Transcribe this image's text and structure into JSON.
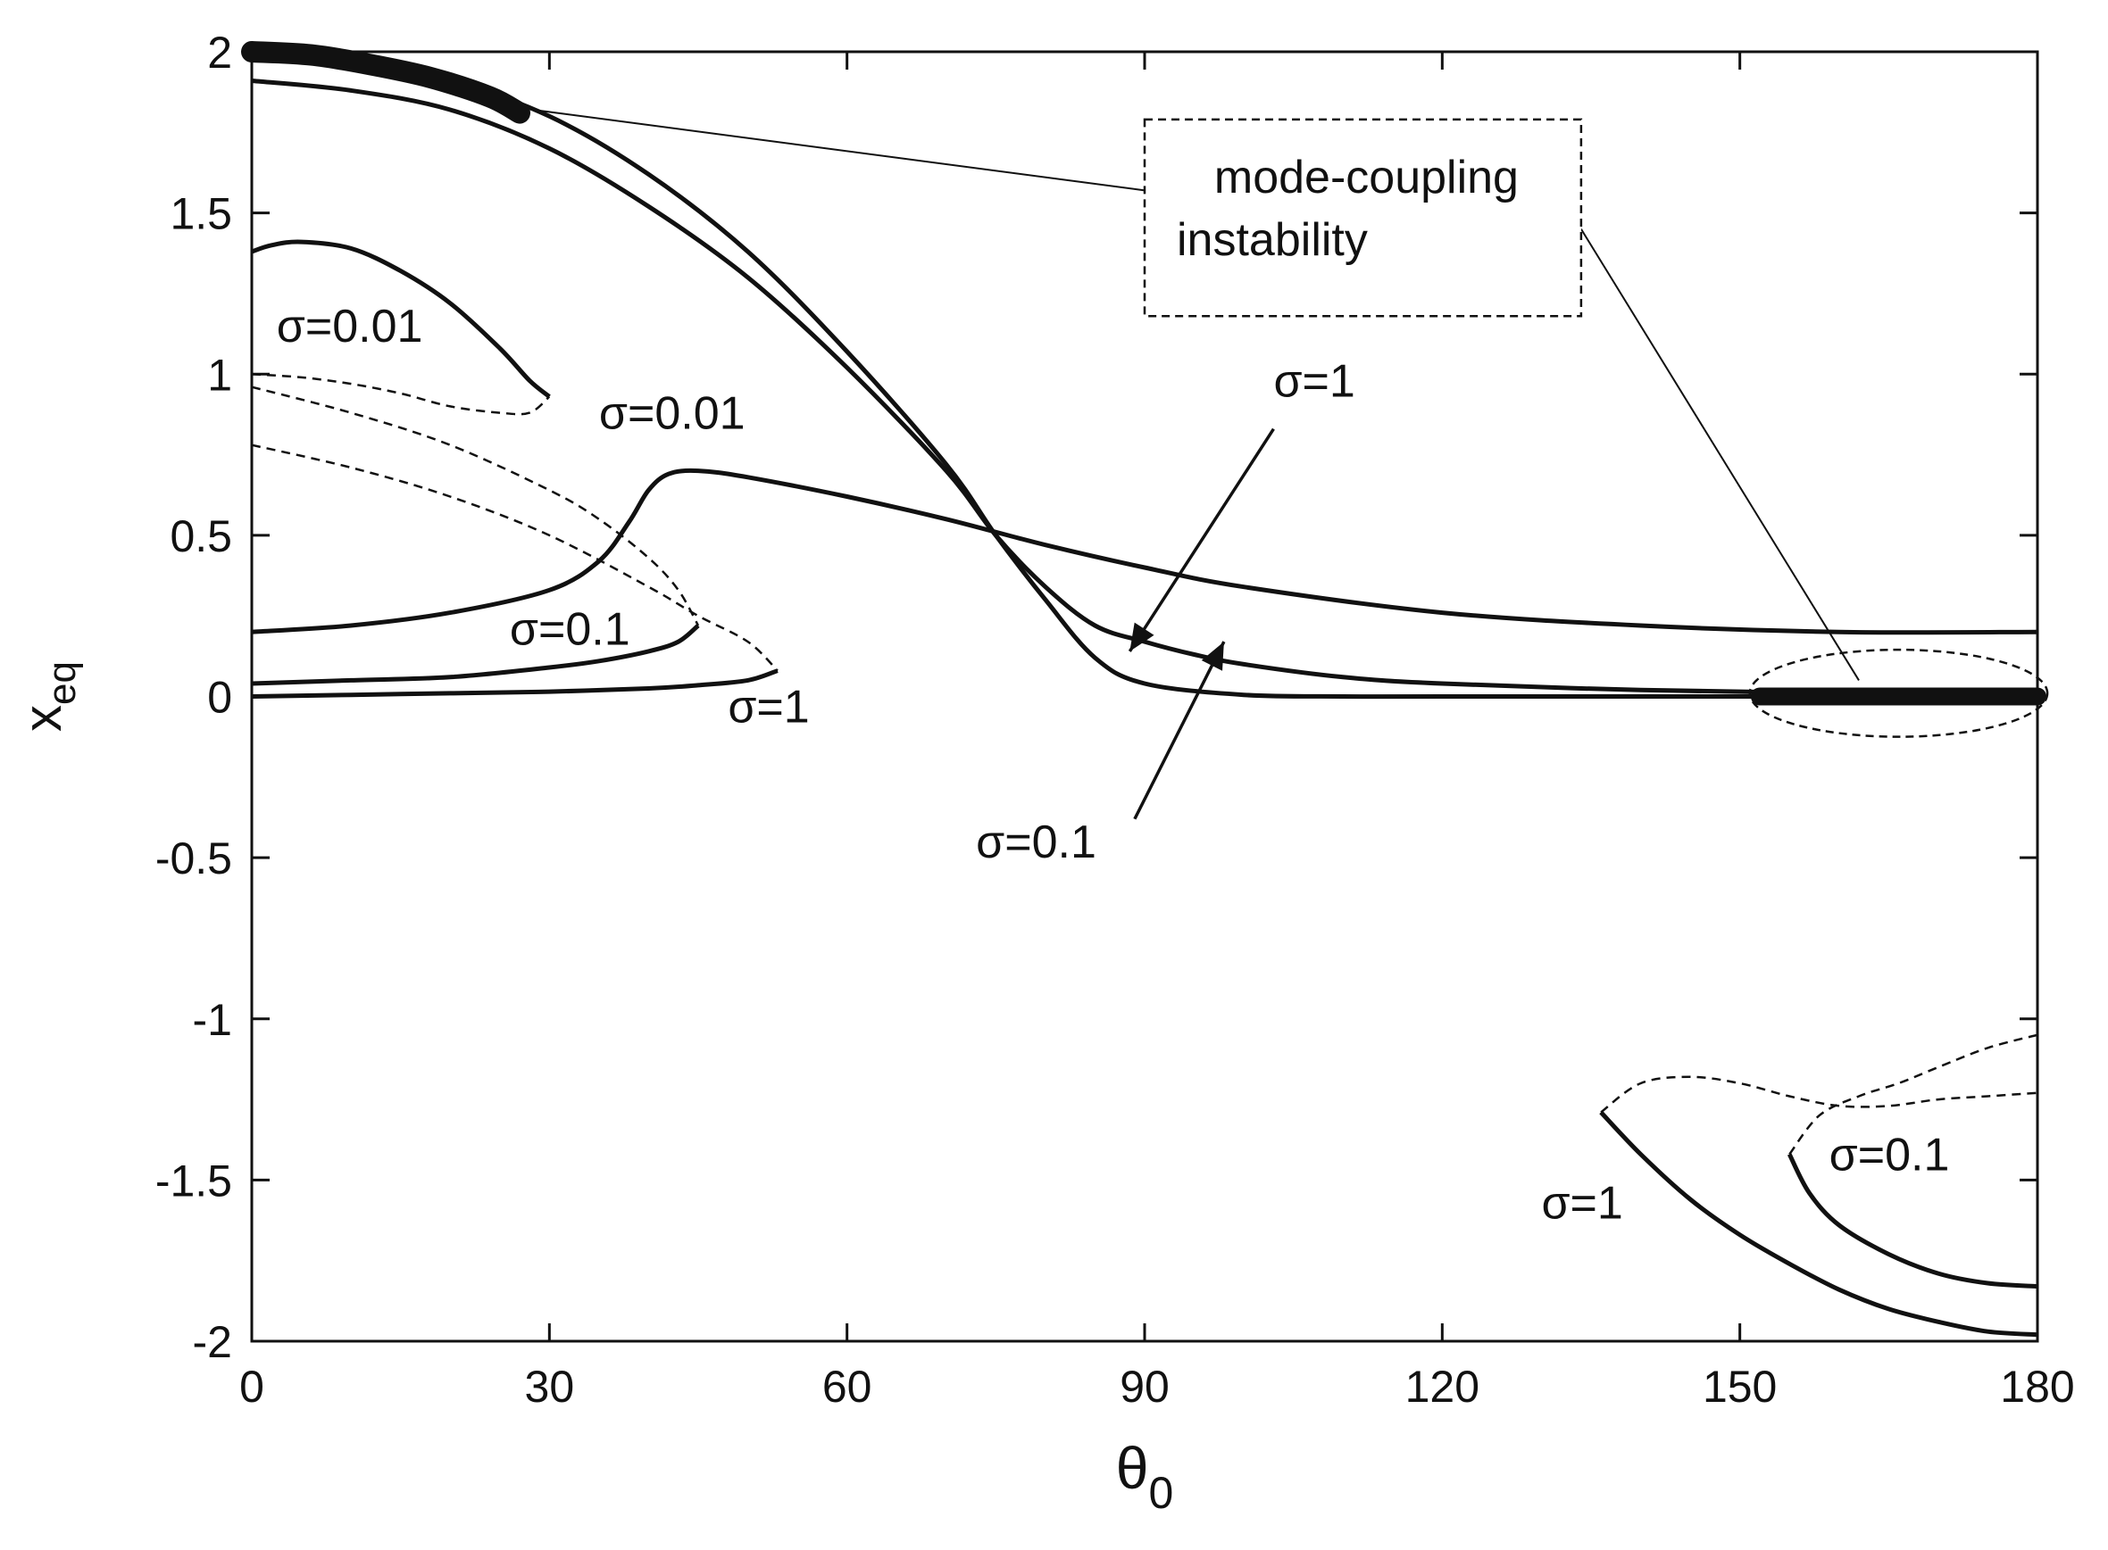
{
  "chart_data": {
    "type": "line",
    "title": "",
    "xlabel": "θ",
    "xlabel_sub": "0",
    "ylabel": "x",
    "ylabel_sub": "eq",
    "xlim": [
      0,
      180
    ],
    "ylim": [
      -2,
      2
    ],
    "grid": false,
    "x_ticks": [
      0,
      30,
      60,
      90,
      120,
      150,
      180
    ],
    "x_tick_labels": [
      "0",
      "30",
      "60",
      "90",
      "120",
      "150",
      "180"
    ],
    "y_ticks": [
      2,
      1.5,
      1,
      0.5,
      0,
      -0.5,
      -1,
      -1.5,
      -2
    ],
    "y_tick_labels": [
      "2",
      "1.5",
      "1",
      "0.5",
      "0",
      "-0.5",
      "-1",
      "-1.5",
      "-2"
    ],
    "series": [
      {
        "name": "upper stable branch (sigma=0.01)",
        "style": "solid",
        "width": 5,
        "x": [
          0,
          10,
          20,
          30,
          40,
          50,
          60,
          70,
          75,
          80,
          85,
          90,
          100,
          110,
          120,
          140,
          160,
          180
        ],
        "y": [
          2.0,
          1.97,
          1.91,
          1.8,
          1.62,
          1.38,
          1.07,
          0.72,
          0.5,
          0.3,
          0.12,
          0.04,
          0.005,
          0.0,
          0.0,
          0.0,
          0.0,
          0.0
        ]
      },
      {
        "name": "upper stable branch (sigma=0.1 / 1)",
        "style": "solid",
        "width": 5,
        "x": [
          0,
          10,
          20,
          30,
          40,
          50,
          60,
          70,
          75,
          80,
          85,
          90,
          95,
          100,
          110,
          120,
          140,
          160,
          180
        ],
        "y": [
          1.91,
          1.88,
          1.82,
          1.7,
          1.52,
          1.3,
          1.02,
          0.7,
          0.5,
          0.34,
          0.22,
          0.17,
          0.13,
          0.1,
          0.06,
          0.04,
          0.02,
          0.01,
          0.01
        ]
      },
      {
        "name": "sigma=0.01 right branch",
        "style": "solid",
        "width": 5,
        "x": [
          0,
          10,
          20,
          30,
          35,
          38,
          40,
          42,
          45,
          50,
          60,
          70,
          80,
          90,
          100,
          120,
          140,
          160,
          180
        ],
        "y": [
          0.2,
          0.22,
          0.26,
          0.33,
          0.42,
          0.54,
          0.64,
          0.69,
          0.7,
          0.68,
          0.62,
          0.55,
          0.47,
          0.4,
          0.34,
          0.26,
          0.22,
          0.2,
          0.2
        ]
      },
      {
        "name": "sigma=0.01 left loop stable",
        "style": "solid",
        "width": 5,
        "x": [
          0,
          2,
          5,
          10,
          15,
          20,
          25,
          28,
          30
        ],
        "y": [
          1.38,
          1.4,
          1.41,
          1.39,
          1.32,
          1.22,
          1.08,
          0.98,
          0.93
        ]
      },
      {
        "name": "sigma=0.01 left loop unstable",
        "style": "dashed",
        "width": 2.5,
        "x": [
          0,
          5,
          10,
          15,
          20,
          25,
          28,
          30
        ],
        "y": [
          1.0,
          0.99,
          0.97,
          0.94,
          0.9,
          0.88,
          0.88,
          0.93
        ]
      },
      {
        "name": "sigma=0.1 left loop stable",
        "style": "solid",
        "width": 5,
        "x": [
          0,
          10,
          20,
          30,
          35,
          40,
          43,
          45
        ],
        "y": [
          0.04,
          0.05,
          0.06,
          0.09,
          0.11,
          0.14,
          0.17,
          0.22
        ]
      },
      {
        "name": "sigma=0.1 left loop unstable",
        "style": "dashed",
        "width": 2.5,
        "x": [
          0,
          10,
          20,
          30,
          35,
          40,
          43,
          45
        ],
        "y": [
          0.96,
          0.88,
          0.78,
          0.64,
          0.55,
          0.43,
          0.33,
          0.22
        ]
      },
      {
        "name": "sigma=1 left loop stable",
        "style": "solid",
        "width": 5,
        "x": [
          0,
          10,
          20,
          30,
          40,
          45,
          50,
          53
        ],
        "y": [
          0.0,
          0.005,
          0.01,
          0.015,
          0.025,
          0.035,
          0.05,
          0.08
        ]
      },
      {
        "name": "sigma=1 left loop unstable",
        "style": "dashed",
        "width": 2.5,
        "x": [
          0,
          10,
          20,
          30,
          40,
          45,
          50,
          53
        ],
        "y": [
          0.78,
          0.71,
          0.62,
          0.5,
          0.34,
          0.25,
          0.17,
          0.08
        ]
      },
      {
        "name": "sigma=1 right loop stable",
        "style": "solid",
        "width": 5,
        "x": [
          136,
          140,
          145,
          150,
          155,
          160,
          165,
          170,
          175,
          180
        ],
        "y": [
          -1.29,
          -1.42,
          -1.56,
          -1.67,
          -1.76,
          -1.84,
          -1.9,
          -1.94,
          -1.97,
          -1.98
        ]
      },
      {
        "name": "sigma=1 right loop unstable",
        "style": "dashed",
        "width": 2.5,
        "x": [
          136,
          140,
          145,
          150,
          155,
          160,
          165,
          170,
          175,
          180
        ],
        "y": [
          -1.29,
          -1.2,
          -1.18,
          -1.2,
          -1.24,
          -1.27,
          -1.27,
          -1.25,
          -1.24,
          -1.23
        ]
      },
      {
        "name": "sigma=0.1 right loop stable",
        "style": "solid",
        "width": 5,
        "x": [
          155,
          157,
          160,
          165,
          170,
          175,
          180
        ],
        "y": [
          -1.42,
          -1.54,
          -1.64,
          -1.73,
          -1.79,
          -1.82,
          -1.83
        ]
      },
      {
        "name": "sigma=0.1 right loop unstable",
        "style": "dashed",
        "width": 2.5,
        "x": [
          155,
          158,
          162,
          166,
          170,
          175,
          180
        ],
        "y": [
          -1.42,
          -1.3,
          -1.24,
          -1.2,
          -1.15,
          -1.09,
          -1.05
        ]
      },
      {
        "name": "mode-coupling instability (low theta)",
        "style": "solid",
        "width": 24,
        "x": [
          0,
          6,
          12,
          18,
          24,
          27
        ],
        "y": [
          2.0,
          1.99,
          1.96,
          1.92,
          1.86,
          1.81
        ]
      },
      {
        "name": "mode-coupling instability (high theta)",
        "style": "solid",
        "width": 20,
        "x": [
          152,
          160,
          170,
          180
        ],
        "y": [
          0.0,
          0.0,
          0.0,
          0.0
        ]
      }
    ],
    "annotations": [
      {
        "text": "σ=0.01",
        "x": 2.5,
        "y": 1.1
      },
      {
        "text": "σ=0.01",
        "x": 35,
        "y": 0.83
      },
      {
        "text": "σ=0.1",
        "x": 26,
        "y": 0.16
      },
      {
        "text": "σ=1",
        "x": 48,
        "y": -0.08
      },
      {
        "text": "σ=1",
        "x": 103,
        "y": 0.93
      },
      {
        "text": "σ=0.1",
        "x": 73,
        "y": -0.5
      },
      {
        "text": "σ=0.1",
        "x": 159,
        "y": -1.47
      },
      {
        "text": "σ=1",
        "x": 130,
        "y": -1.62
      }
    ],
    "callout": {
      "lines": [
        "mode-coupling",
        "instability"
      ],
      "box": {
        "x0": 90,
        "x1": 134,
        "y0": 1.79,
        "y1": 1.18
      },
      "pointer_to": [
        {
          "x": 27,
          "y": 1.81
        },
        {
          "x": 162,
          "y": 0.05
        }
      ],
      "ellipse": {
        "cx": 166,
        "cy": 0.01,
        "rx": 15,
        "ry": 0.135
      }
    },
    "arrows": [
      {
        "from": {
          "x": 103,
          "y": 0.83
        },
        "to": {
          "x": 88.5,
          "y": 0.14
        }
      },
      {
        "from": {
          "x": 89,
          "y": -0.38
        },
        "to": {
          "x": 98,
          "y": 0.17
        }
      }
    ]
  }
}
